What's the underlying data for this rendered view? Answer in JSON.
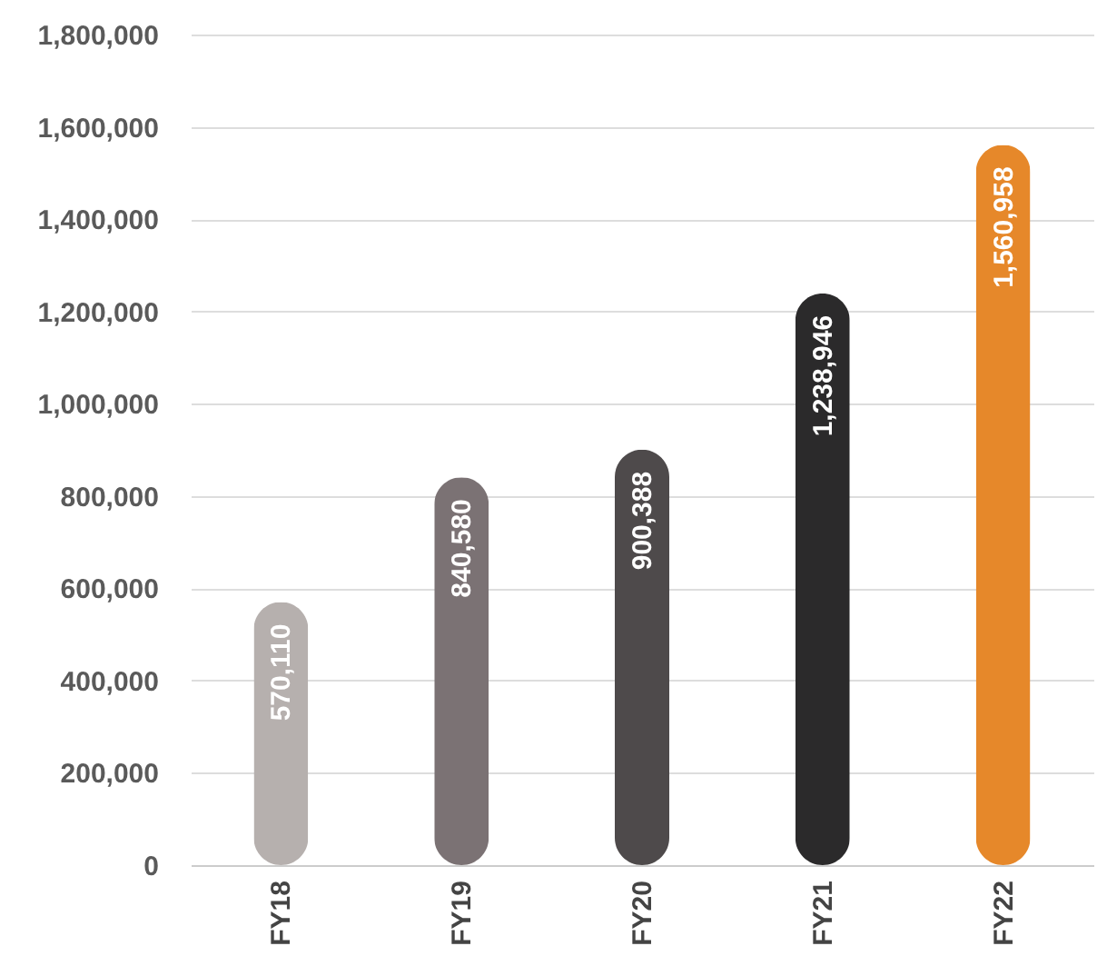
{
  "chart_data": {
    "type": "bar",
    "categories": [
      "FY18",
      "FY19",
      "FY20",
      "FY21",
      "FY22"
    ],
    "values": [
      570110,
      840580,
      900388,
      1238946,
      1560958
    ],
    "colors": [
      "#b6b0ae",
      "#7b7274",
      "#4e4a4b",
      "#2b2a2b",
      "#e6882a"
    ],
    "ylim": [
      0,
      1800000
    ],
    "yticks": [
      {
        "value": 0,
        "label": "0"
      },
      {
        "value": 200000,
        "label": "200,000"
      },
      {
        "value": 400000,
        "label": "400,000"
      },
      {
        "value": 600000,
        "label": "600,000"
      },
      {
        "value": 800000,
        "label": "800,000"
      },
      {
        "value": 1000000,
        "label": "1,000,000"
      },
      {
        "value": 1200000,
        "label": "1,200,000"
      },
      {
        "value": 1400000,
        "label": "1,400,000"
      },
      {
        "value": 1600000,
        "label": "1,600,000"
      },
      {
        "value": 1800000,
        "label": "1,800,000"
      }
    ],
    "value_labels": [
      "570,110",
      "840,580",
      "900,388",
      "1,238,946",
      "1,560,958"
    ],
    "grid": "y"
  }
}
